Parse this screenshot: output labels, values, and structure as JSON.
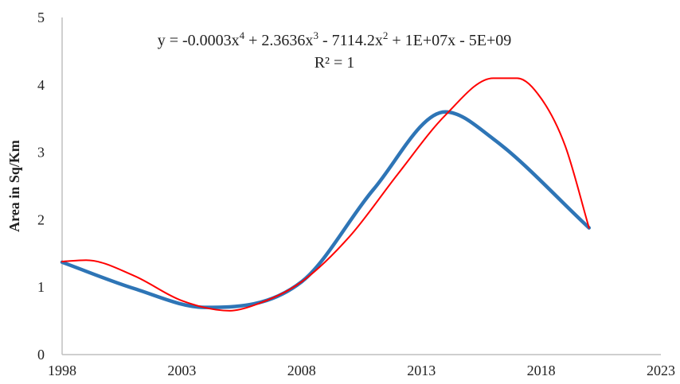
{
  "chart_data": {
    "type": "line",
    "title": "",
    "xlabel": "",
    "ylabel": "Area in Sq/Km",
    "xlim": [
      1998,
      2023
    ],
    "ylim": [
      0,
      5
    ],
    "x_ticks": [
      "1998",
      "2003",
      "2008",
      "2013",
      "2018",
      "2023"
    ],
    "y_ticks": [
      "0",
      "1",
      "2",
      "3",
      "4",
      "5"
    ],
    "grid": false,
    "legend": "none",
    "annotation": {
      "equation_parts": {
        "p1": "y = -0.0003x",
        "e1": "4",
        "p2": " + 2.3636x",
        "e2": "3",
        "p3": " - 7114.2x",
        "e3": "2",
        "p4": " + 1E+07x - 5E+09"
      },
      "r2_text": "R² = 1"
    },
    "series": [
      {
        "style": "data-smooth",
        "color": "#2e75b6",
        "x": [
          1998,
          2001,
          2004,
          2008,
          2011,
          2014,
          2016,
          2020
        ],
        "y": [
          1.37,
          0.98,
          0.7,
          1.08,
          2.45,
          3.6,
          3.2,
          1.88
        ]
      },
      {
        "style": "trendline-poly4",
        "color": "#ff0000",
        "x": [
          1998,
          1999,
          2001,
          2003,
          2005,
          2006,
          2008,
          2010,
          2012,
          2014,
          2016,
          2017,
          2018,
          2019,
          2020
        ],
        "y": [
          1.38,
          1.4,
          1.17,
          0.8,
          0.65,
          0.73,
          1.08,
          1.75,
          2.67,
          3.55,
          4.1,
          4.1,
          3.8,
          3.1,
          1.88
        ]
      }
    ]
  }
}
